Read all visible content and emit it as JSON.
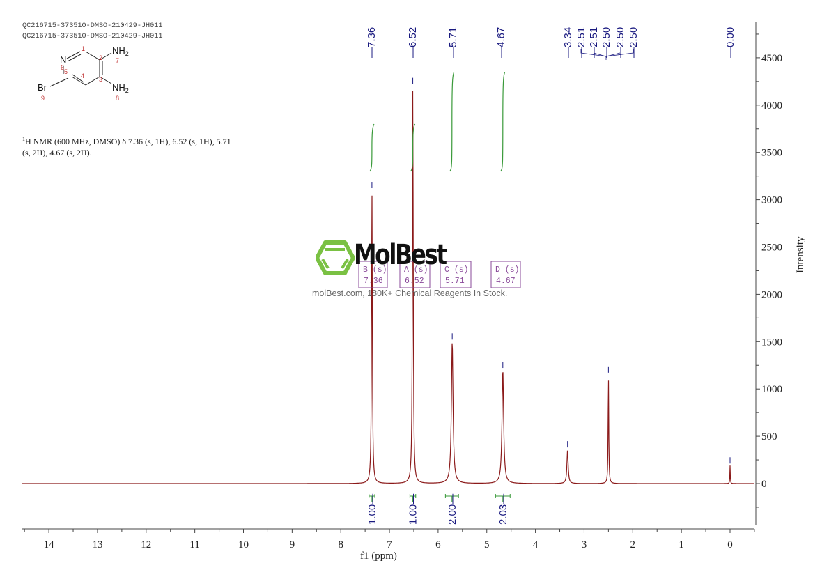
{
  "header": {
    "line1": "QC216715-373510-DMSO-210429-JH011",
    "line2": "QC216715-373510-DMSO-210429-JH011"
  },
  "structure": {
    "atoms": [
      {
        "label": "N",
        "num": "6"
      },
      {
        "label": "NH2",
        "num": "7"
      },
      {
        "label": "NH2",
        "num": "8"
      },
      {
        "label": "Br",
        "num": "9"
      }
    ],
    "ring_numbers": [
      "1",
      "2",
      "3",
      "4",
      "5",
      "6"
    ]
  },
  "nmr_summary": "H NMR (600 MHz, DMSO) δ 7.36 (s, 1H), 6.52 (s, 1H), 5.71 (s, 2H), 4.67 (s, 2H).",
  "nmr_summary_sup": "1",
  "watermark": {
    "logo": "MolBest",
    "tagline": "molBest.com, 180K+ Chemical Reagents In Stock."
  },
  "colors": {
    "spectrum": "#8b1a1a",
    "peak_labels": "#1a1a80",
    "integral": "#3a9a3a",
    "multiplet_box": "#8a4a9a",
    "watermark_green": "#7ac143"
  },
  "chart_data": {
    "type": "line",
    "title": "",
    "xlabel": "f1 (ppm)",
    "ylabel": "Intensity",
    "xlim": [
      14.5,
      -0.5
    ],
    "ylim": [
      -500,
      4900
    ],
    "x_ticks": [
      14,
      13,
      12,
      11,
      10,
      9,
      8,
      7,
      6,
      5,
      4,
      3,
      2,
      1,
      0
    ],
    "y_ticks": [
      0,
      500,
      1000,
      1500,
      2000,
      2500,
      3000,
      3500,
      4000,
      4500
    ],
    "grid": false,
    "peaks": [
      {
        "ppm": 7.36,
        "intensity": 3100,
        "width": 0.02
      },
      {
        "ppm": 6.52,
        "intensity": 4200,
        "width": 0.02
      },
      {
        "ppm": 5.71,
        "intensity": 1500,
        "width": 0.04
      },
      {
        "ppm": 4.67,
        "intensity": 1200,
        "width": 0.04
      },
      {
        "ppm": 3.34,
        "intensity": 360,
        "width": 0.03
      },
      {
        "ppm": 2.5,
        "intensity": 1150,
        "width": 0.015
      },
      {
        "ppm": 0.0,
        "intensity": 190,
        "width": 0.01
      }
    ],
    "peak_labels": [
      "7.36",
      "6.52",
      "5.71",
      "4.67",
      "3.34",
      "2.51",
      "2.51",
      "2.50",
      "2.50",
      "2.50",
      "0.00"
    ],
    "integrals": [
      {
        "ppm_from": 7.42,
        "ppm_to": 7.3,
        "value": "1.00",
        "curve_top": 3800,
        "curve_bottom": 3300
      },
      {
        "ppm_from": 6.58,
        "ppm_to": 6.46,
        "value": "1.00",
        "curve_top": 3800,
        "curve_bottom": 3300
      },
      {
        "ppm_from": 5.85,
        "ppm_to": 5.58,
        "value": "2.00",
        "curve_top": 4350,
        "curve_bottom": 3300
      },
      {
        "ppm_from": 4.82,
        "ppm_to": 4.52,
        "value": "2.03",
        "curve_top": 4350,
        "curve_bottom": 3300
      }
    ],
    "multiplets": [
      {
        "label": "B (s)",
        "shift": "7.36"
      },
      {
        "label": "A (s)",
        "shift": "6.52"
      },
      {
        "label": "C (s)",
        "shift": "5.71"
      },
      {
        "label": "D (s)",
        "shift": "4.67"
      }
    ]
  }
}
